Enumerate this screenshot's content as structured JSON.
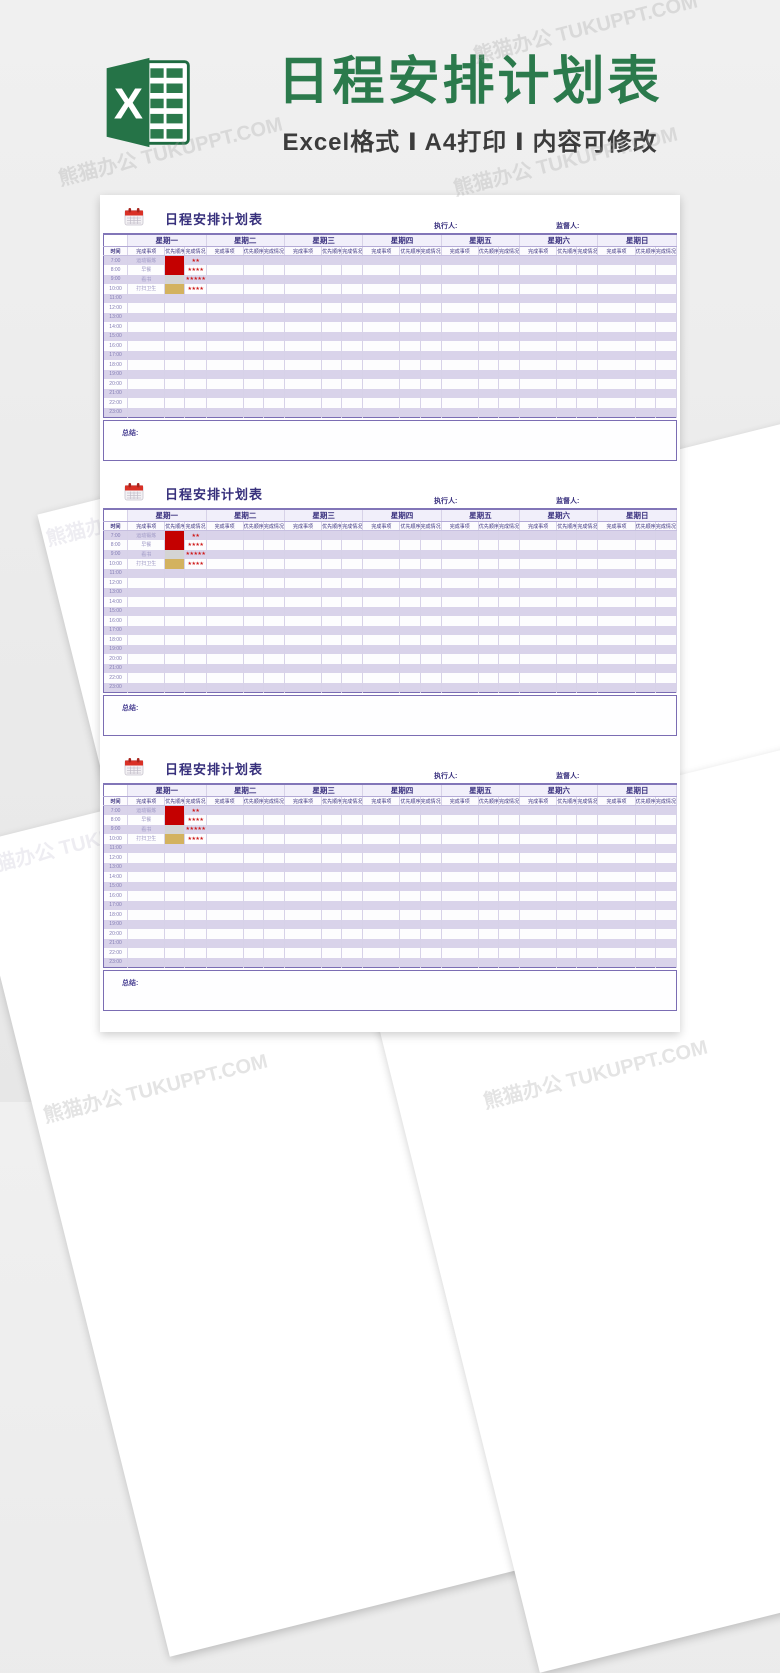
{
  "watermark": {
    "text": "熊猫办公 TUKUPPT.COM"
  },
  "banner": {
    "title": "日程安排计划表",
    "subtitle": "Excel格式 Ⅰ A4打印 Ⅰ 内容可修改",
    "excel_letter": "X",
    "colors": {
      "green": "#2b7a4c",
      "subtitle_gray": "#3c3c3c"
    }
  },
  "sheet": {
    "title": "日程安排计划表",
    "executor_label": "执行人:",
    "supervisor_label": "监督人:",
    "time_header": "时间",
    "days": [
      "星期一",
      "星期二",
      "星期三",
      "星期四",
      "星期五",
      "星期六",
      "星期日"
    ],
    "sub_columns": [
      "完成事项",
      "优先顺序",
      "完成情况"
    ],
    "times": [
      "7:00",
      "8:00",
      "9:00",
      "10:00",
      "11:00",
      "12:00",
      "13:00",
      "14:00",
      "15:00",
      "16:00",
      "17:00",
      "18:00",
      "19:00",
      "20:00",
      "21:00",
      "22:00",
      "23:00"
    ],
    "entries": [
      {
        "time": "7:00",
        "task": "运动锻炼",
        "priority_color": "#c40000",
        "rating": "★★"
      },
      {
        "time": "8:00",
        "task": "早餐",
        "priority_color": "#c40000",
        "rating": "★★★★"
      },
      {
        "time": "9:00",
        "task": "看书",
        "priority_color": "#d4d4d4",
        "rating": "★★★★★"
      },
      {
        "time": "10:00",
        "task": "打扫卫生",
        "priority_color": "#d3b25f",
        "rating": "★★★★"
      }
    ],
    "summary_label": "总结:",
    "colors": {
      "border_outer": "#7b6db3",
      "border_group": "#8478bd",
      "border_inner": "#d7d2e8",
      "row_alt": "#d9d3ea",
      "header_text": "#39307e",
      "priority_red": "#c40000",
      "priority_silver": "#d4d4d4",
      "priority_tan": "#d3b25f",
      "star_red": "#cf1d1d"
    }
  }
}
